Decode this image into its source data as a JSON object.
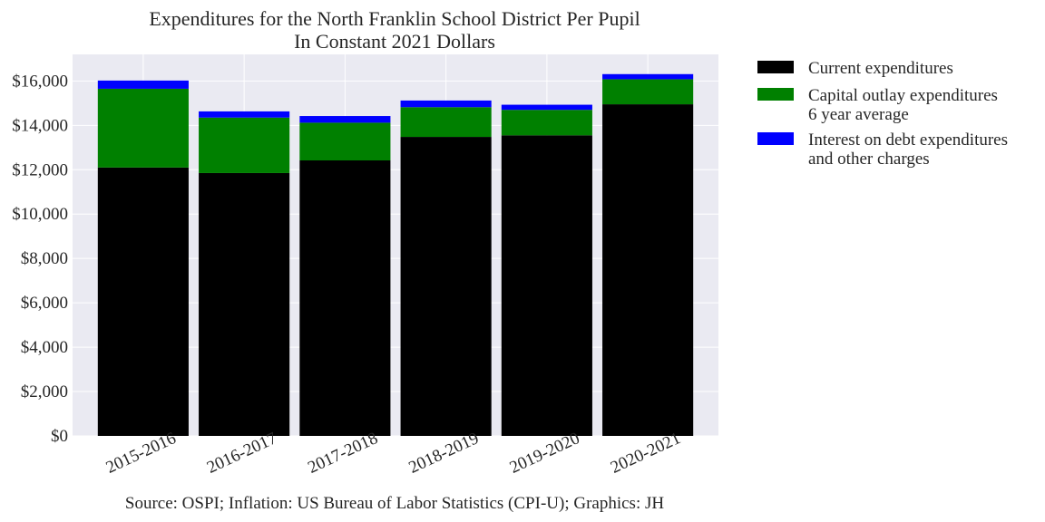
{
  "chart_data": {
    "type": "bar",
    "stacked": true,
    "title": [
      "Expenditures for the North Franklin School District Per Pupil",
      "In Constant 2021 Dollars"
    ],
    "xlabel": "",
    "ylabel": "",
    "categories": [
      "2015-2016",
      "2016-2017",
      "2017-2018",
      "2018-2019",
      "2019-2020",
      "2020-2021"
    ],
    "series": [
      {
        "name": "Current expenditures",
        "color": "#000000",
        "values": [
          12100,
          11850,
          12420,
          13480,
          13550,
          14950
        ]
      },
      {
        "name": "Capital outlay expenditures\n6 year average",
        "color": "#008000",
        "values": [
          3550,
          2500,
          1700,
          1340,
          1150,
          1130
        ]
      },
      {
        "name": "Interest on debt expenditures\nand other charges",
        "color": "#0000ff",
        "values": [
          370,
          280,
          300,
          300,
          230,
          230
        ]
      }
    ],
    "ylim": [
      0,
      17200
    ],
    "yticks": [
      0,
      2000,
      4000,
      6000,
      8000,
      10000,
      12000,
      14000,
      16000
    ],
    "ytick_labels": [
      "$0",
      "$2,000",
      "$4,000",
      "$6,000",
      "$8,000",
      "$10,000",
      "$12,000",
      "$14,000",
      "$16,000"
    ],
    "grid": true,
    "legend_position": "outside-right-top",
    "colors": {
      "plot_background": "#eaeaf2",
      "grid": "#ffffff",
      "text": "#262626"
    },
    "source_note": "Source: OSPI; Inflation: US Bureau of Labor Statistics (CPI-U); Graphics: JH"
  }
}
